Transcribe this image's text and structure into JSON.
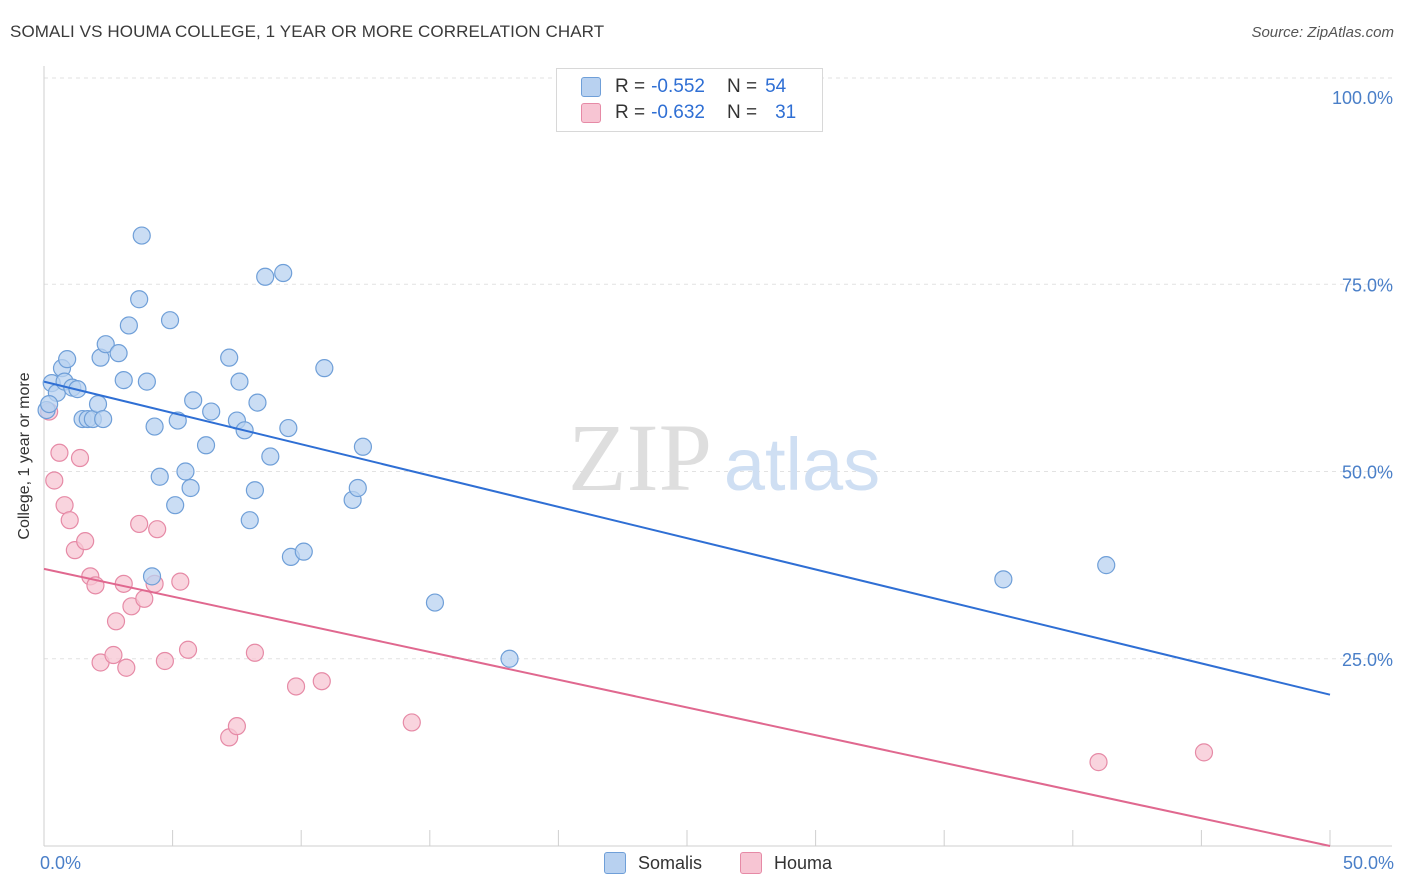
{
  "title": "SOMALI VS HOUMA COLLEGE, 1 YEAR OR MORE CORRELATION CHART",
  "source": "Source: ZipAtlas.com",
  "watermark": {
    "zip": "ZIP",
    "atlas": "atlas"
  },
  "colors": {
    "somalis_fill": "#b8d1f0",
    "somalis_stroke": "#6f9fd8",
    "somalis_line": "#2f6fd4",
    "houma_fill": "#f7c5d3",
    "houma_stroke": "#e68aa6",
    "houma_line": "#e0688f",
    "tick_text": "#4a7fc8"
  },
  "legend": {
    "somalis": {
      "r_label": "R =",
      "r_value": "-0.552",
      "n_label": "N =",
      "n_value": "54"
    },
    "houma": {
      "r_label": "R =",
      "r_value": "-0.632",
      "n_label": "N =",
      "n_value": "31"
    }
  },
  "bottom_legend": {
    "somalis": "Somalis",
    "houma": "Houma"
  },
  "chart_data": {
    "type": "scatter",
    "title": "SOMALI VS HOUMA COLLEGE, 1 YEAR OR MORE CORRELATION CHART",
    "xlabel": "",
    "ylabel": "College, 1 year or more",
    "xlim": [
      0,
      50
    ],
    "ylim": [
      0,
      103
    ],
    "x_tick_labels": [
      "0.0%",
      "50.0%"
    ],
    "y_ticks": [
      25,
      50,
      75,
      100
    ],
    "y_tick_labels": [
      "25.0%",
      "50.0%",
      "75.0%",
      "100.0%"
    ],
    "series": [
      {
        "name": "Somalis",
        "r": -0.552,
        "n": 54,
        "trend": {
          "x": [
            0,
            50
          ],
          "y": [
            62.0,
            20.2
          ]
        },
        "points": [
          [
            0.1,
            58.2
          ],
          [
            0.3,
            61.8
          ],
          [
            0.5,
            60.5
          ],
          [
            0.7,
            63.8
          ],
          [
            0.8,
            62.0
          ],
          [
            0.9,
            65.0
          ],
          [
            1.1,
            61.2
          ],
          [
            1.3,
            61.0
          ],
          [
            1.5,
            57.0
          ],
          [
            1.7,
            57.0
          ],
          [
            1.9,
            57.0
          ],
          [
            2.1,
            59.0
          ],
          [
            2.3,
            57.0
          ],
          [
            2.2,
            65.2
          ],
          [
            2.4,
            67.0
          ],
          [
            2.9,
            65.8
          ],
          [
            3.1,
            62.2
          ],
          [
            3.3,
            69.5
          ],
          [
            3.7,
            73.0
          ],
          [
            3.8,
            81.5
          ],
          [
            4.0,
            62.0
          ],
          [
            4.3,
            56.0
          ],
          [
            4.5,
            49.3
          ],
          [
            4.9,
            70.2
          ],
          [
            5.1,
            45.5
          ],
          [
            5.2,
            56.8
          ],
          [
            5.5,
            50.0
          ],
          [
            5.7,
            47.8
          ],
          [
            5.8,
            59.5
          ],
          [
            6.3,
            53.5
          ],
          [
            6.5,
            58.0
          ],
          [
            7.2,
            65.2
          ],
          [
            7.5,
            56.8
          ],
          [
            7.6,
            62.0
          ],
          [
            7.8,
            55.5
          ],
          [
            8.0,
            43.5
          ],
          [
            8.2,
            47.5
          ],
          [
            8.3,
            59.2
          ],
          [
            8.6,
            76.0
          ],
          [
            8.8,
            52.0
          ],
          [
            9.3,
            76.5
          ],
          [
            9.5,
            55.8
          ],
          [
            9.6,
            38.6
          ],
          [
            10.1,
            39.3
          ],
          [
            10.9,
            63.8
          ],
          [
            12.0,
            46.2
          ],
          [
            12.2,
            47.8
          ],
          [
            12.4,
            53.3
          ],
          [
            4.2,
            36.0
          ],
          [
            15.2,
            32.5
          ],
          [
            18.1,
            25.0
          ],
          [
            37.3,
            35.6
          ],
          [
            41.3,
            37.5
          ],
          [
            0.2,
            59.0
          ]
        ]
      },
      {
        "name": "Houma",
        "r": -0.632,
        "n": 31,
        "trend": {
          "x": [
            0,
            50
          ],
          "y": [
            37.0,
            -1.5
          ]
        },
        "points": [
          [
            0.2,
            58.0
          ],
          [
            0.4,
            48.8
          ],
          [
            0.6,
            52.5
          ],
          [
            0.8,
            45.5
          ],
          [
            1.0,
            43.5
          ],
          [
            1.2,
            39.5
          ],
          [
            1.4,
            51.8
          ],
          [
            1.6,
            40.7
          ],
          [
            1.8,
            36.0
          ],
          [
            2.0,
            34.8
          ],
          [
            2.2,
            24.5
          ],
          [
            2.7,
            25.5
          ],
          [
            2.8,
            30.0
          ],
          [
            3.1,
            35.0
          ],
          [
            3.2,
            23.8
          ],
          [
            3.4,
            32.0
          ],
          [
            3.7,
            43.0
          ],
          [
            3.9,
            33.0
          ],
          [
            4.3,
            35.0
          ],
          [
            4.4,
            42.3
          ],
          [
            4.7,
            24.7
          ],
          [
            5.3,
            35.3
          ],
          [
            5.6,
            26.2
          ],
          [
            7.2,
            14.5
          ],
          [
            7.5,
            16.0
          ],
          [
            8.2,
            25.8
          ],
          [
            9.8,
            21.3
          ],
          [
            10.8,
            22.0
          ],
          [
            14.3,
            16.5
          ],
          [
            41.0,
            11.2
          ],
          [
            45.1,
            12.5
          ]
        ]
      }
    ]
  }
}
